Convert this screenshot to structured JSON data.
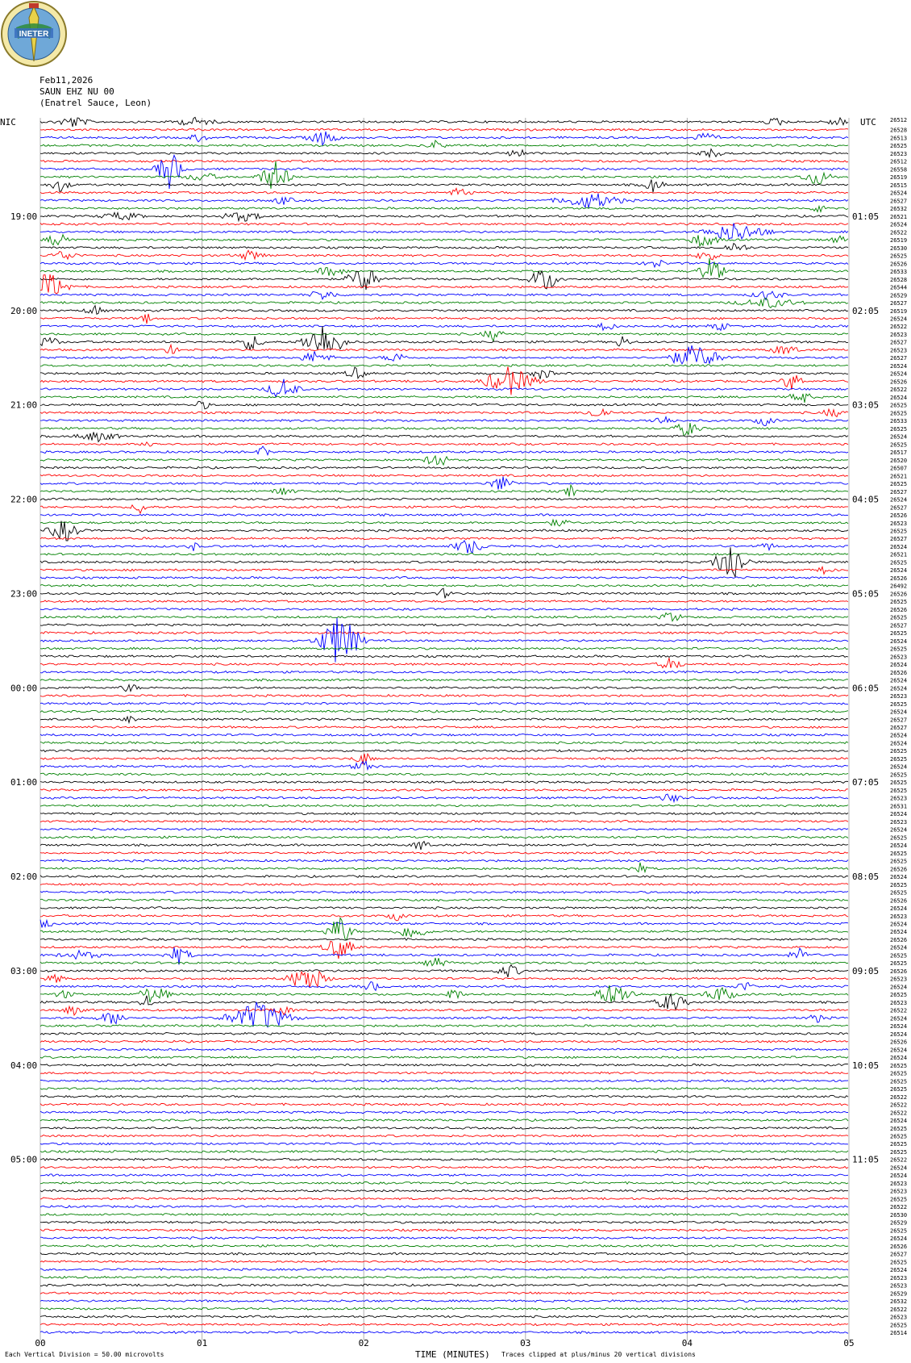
{
  "header": {
    "logo_text": "INETER",
    "date": "Feb11,2026",
    "station": "SAUN EHZ NU 00",
    "location": "(Enatrel Sauce, Leon)",
    "left_zone": "NIC",
    "right_zone": "UTC"
  },
  "footer": {
    "x_axis_label": "TIME (MINUTES)",
    "scale_note": "Each Vertical Division =   50.00 microvolts",
    "clip_note": "Traces clipped at plus/minus 20 vertical divisions"
  },
  "chart_data": {
    "type": "line",
    "title": "",
    "xlabel": "TIME (MINUTES)",
    "xlim": [
      0,
      5
    ],
    "x_ticks": [
      "00",
      "01",
      "02",
      "03",
      "04",
      "05"
    ],
    "trace_interval_minutes": 5,
    "trace_colors": [
      "#000000",
      "#ff0000",
      "#0000ff",
      "#008000"
    ],
    "left_hour_labels": [
      "19:00",
      "20:00",
      "21:00",
      "22:00",
      "23:00",
      "00:00",
      "01:00",
      "02:00",
      "03:00",
      "04:00",
      "05:00"
    ],
    "right_hour_labels": [
      "01:05",
      "02:05",
      "03:05",
      "04:05",
      "05:05",
      "06:05",
      "07:05",
      "08:05",
      "09:05",
      "10:05",
      "11:05"
    ],
    "first_hour_row": 12,
    "rows_per_hour": 12,
    "top_right_label": "26512",
    "row_counts": [
      26528,
      26513,
      26525,
      26523,
      26512,
      26558,
      26519,
      26515,
      26524,
      26527,
      26532,
      26521,
      26524,
      26522,
      26519,
      26530,
      26525,
      26526,
      26533,
      26528,
      26544,
      26529,
      26527,
      26519,
      26524,
      26522,
      26523,
      26527,
      26523,
      26527,
      26524,
      26524,
      26526,
      26522,
      26524,
      26525,
      26525,
      26533,
      26525,
      26524,
      26525,
      26517,
      26520,
      26507,
      26521,
      26525,
      26527,
      26524,
      26527,
      26526,
      26523,
      26525,
      26527,
      26524,
      26521,
      26525,
      26524,
      26526,
      26492,
      26526,
      26525,
      26526,
      26525,
      26527,
      26525,
      26524,
      26525,
      26523,
      26524,
      26526,
      26524,
      26524,
      26523,
      26525,
      26524,
      26527,
      26527,
      26524,
      26524,
      26525,
      26525,
      26524,
      26525,
      26525,
      26525,
      26523,
      26531,
      26524,
      26523,
      26524,
      26525,
      26524,
      26525,
      26525,
      26526,
      26524,
      26525,
      26525,
      26526,
      26524,
      26523,
      26524,
      26524,
      26526,
      26524,
      26525,
      26525,
      26526,
      26523,
      26524,
      26525,
      26523,
      26522,
      26524,
      26524,
      26524,
      26526,
      26524,
      26524,
      26525,
      26525,
      26525,
      26525,
      26522,
      26522,
      26522,
      26524,
      26525,
      26525,
      26525,
      26525,
      26522,
      26524,
      26524,
      26523,
      26523,
      26525,
      26522,
      26530,
      26529,
      26525,
      26524,
      26526,
      26527,
      26525,
      26524,
      26523,
      26523,
      26529,
      26532,
      26522,
      26523,
      26525,
      26514
    ],
    "events": [
      {
        "row": 0,
        "t": 0.2,
        "amp": 7,
        "dur": 0.15
      },
      {
        "row": 0,
        "t": 0.95,
        "amp": 5,
        "dur": 0.2
      },
      {
        "row": 0,
        "t": 4.55,
        "amp": 5,
        "dur": 0.1
      },
      {
        "row": 0,
        "t": 4.93,
        "amp": 6,
        "dur": 0.1
      },
      {
        "row": 2,
        "t": 1.75,
        "amp": 9,
        "dur": 0.15
      },
      {
        "row": 2,
        "t": 0.98,
        "amp": 5,
        "dur": 0.1
      },
      {
        "row": 2,
        "t": 4.1,
        "amp": 5,
        "dur": 0.15
      },
      {
        "row": 3,
        "t": 2.45,
        "amp": 7,
        "dur": 0.08
      },
      {
        "row": 4,
        "t": 2.95,
        "amp": 6,
        "dur": 0.1
      },
      {
        "row": 4,
        "t": 4.15,
        "amp": 5,
        "dur": 0.12
      },
      {
        "row": 6,
        "t": 0.8,
        "amp": 26,
        "dur": 0.12
      },
      {
        "row": 7,
        "t": 1.0,
        "amp": 6,
        "dur": 0.15
      },
      {
        "row": 7,
        "t": 1.45,
        "amp": 20,
        "dur": 0.15
      },
      {
        "row": 7,
        "t": 4.8,
        "amp": 10,
        "dur": 0.15
      },
      {
        "row": 8,
        "t": 0.12,
        "amp": 8,
        "dur": 0.1
      },
      {
        "row": 8,
        "t": 3.79,
        "amp": 9,
        "dur": 0.1
      },
      {
        "row": 9,
        "t": 2.6,
        "amp": 6,
        "dur": 0.12
      },
      {
        "row": 10,
        "t": 3.4,
        "amp": 10,
        "dur": 0.3
      },
      {
        "row": 10,
        "t": 1.5,
        "amp": 5,
        "dur": 0.1
      },
      {
        "row": 11,
        "t": 4.83,
        "amp": 8,
        "dur": 0.08
      },
      {
        "row": 12,
        "t": 0.5,
        "amp": 5,
        "dur": 0.2
      },
      {
        "row": 12,
        "t": 1.25,
        "amp": 6,
        "dur": 0.2
      },
      {
        "row": 14,
        "t": 4.3,
        "amp": 12,
        "dur": 0.3
      },
      {
        "row": 15,
        "t": 0.12,
        "amp": 10,
        "dur": 0.12
      },
      {
        "row": 15,
        "t": 4.1,
        "amp": 9,
        "dur": 0.15
      },
      {
        "row": 15,
        "t": 4.93,
        "amp": 5,
        "dur": 0.08
      },
      {
        "row": 16,
        "t": 4.3,
        "amp": 7,
        "dur": 0.12
      },
      {
        "row": 17,
        "t": 0.15,
        "amp": 7,
        "dur": 0.12
      },
      {
        "row": 17,
        "t": 1.3,
        "amp": 6,
        "dur": 0.15
      },
      {
        "row": 17,
        "t": 4.12,
        "amp": 8,
        "dur": 0.1
      },
      {
        "row": 18,
        "t": 3.8,
        "amp": 6,
        "dur": 0.1
      },
      {
        "row": 19,
        "t": 1.8,
        "amp": 6,
        "dur": 0.15
      },
      {
        "row": 19,
        "t": 4.15,
        "amp": 18,
        "dur": 0.12
      },
      {
        "row": 20,
        "t": 2.0,
        "amp": 18,
        "dur": 0.15
      },
      {
        "row": 20,
        "t": 3.12,
        "amp": 16,
        "dur": 0.15
      },
      {
        "row": 21,
        "t": 0.05,
        "amp": 18,
        "dur": 0.2
      },
      {
        "row": 22,
        "t": 1.75,
        "amp": 6,
        "dur": 0.15
      },
      {
        "row": 22,
        "t": 4.5,
        "amp": 6,
        "dur": 0.15
      },
      {
        "row": 23,
        "t": 4.5,
        "amp": 6,
        "dur": 0.3
      },
      {
        "row": 24,
        "t": 0.33,
        "amp": 8,
        "dur": 0.08
      },
      {
        "row": 25,
        "t": 0.65,
        "amp": 10,
        "dur": 0.05
      },
      {
        "row": 26,
        "t": 3.5,
        "amp": 7,
        "dur": 0.08
      },
      {
        "row": 26,
        "t": 4.2,
        "amp": 5,
        "dur": 0.1
      },
      {
        "row": 27,
        "t": 2.8,
        "amp": 8,
        "dur": 0.1
      },
      {
        "row": 28,
        "t": 0.05,
        "amp": 8,
        "dur": 0.1
      },
      {
        "row": 28,
        "t": 1.3,
        "amp": 10,
        "dur": 0.12
      },
      {
        "row": 28,
        "t": 1.75,
        "amp": 24,
        "dur": 0.2
      },
      {
        "row": 28,
        "t": 3.6,
        "amp": 8,
        "dur": 0.08
      },
      {
        "row": 29,
        "t": 0.8,
        "amp": 6,
        "dur": 0.08
      },
      {
        "row": 29,
        "t": 4.6,
        "amp": 6,
        "dur": 0.15
      },
      {
        "row": 30,
        "t": 1.7,
        "amp": 8,
        "dur": 0.15
      },
      {
        "row": 30,
        "t": 2.2,
        "amp": 6,
        "dur": 0.12
      },
      {
        "row": 30,
        "t": 4.05,
        "amp": 16,
        "dur": 0.25
      },
      {
        "row": 32,
        "t": 1.95,
        "amp": 8,
        "dur": 0.1
      },
      {
        "row": 32,
        "t": 3.1,
        "amp": 8,
        "dur": 0.1
      },
      {
        "row": 33,
        "t": 2.9,
        "amp": 18,
        "dur": 0.25
      },
      {
        "row": 33,
        "t": 4.65,
        "amp": 12,
        "dur": 0.1
      },
      {
        "row": 34,
        "t": 1.5,
        "amp": 14,
        "dur": 0.15
      },
      {
        "row": 35,
        "t": 4.7,
        "amp": 10,
        "dur": 0.1
      },
      {
        "row": 36,
        "t": 1.0,
        "amp": 6,
        "dur": 0.08
      },
      {
        "row": 37,
        "t": 3.45,
        "amp": 8,
        "dur": 0.12
      },
      {
        "row": 37,
        "t": 4.9,
        "amp": 6,
        "dur": 0.1
      },
      {
        "row": 38,
        "t": 3.85,
        "amp": 6,
        "dur": 0.12
      },
      {
        "row": 38,
        "t": 4.48,
        "amp": 6,
        "dur": 0.1
      },
      {
        "row": 39,
        "t": 4.0,
        "amp": 10,
        "dur": 0.12
      },
      {
        "row": 40,
        "t": 0.35,
        "amp": 6,
        "dur": 0.2
      },
      {
        "row": 41,
        "t": 0.68,
        "amp": 5,
        "dur": 0.08
      },
      {
        "row": 42,
        "t": 1.38,
        "amp": 8,
        "dur": 0.06
      },
      {
        "row": 43,
        "t": 2.45,
        "amp": 12,
        "dur": 0.1
      },
      {
        "row": 46,
        "t": 2.85,
        "amp": 10,
        "dur": 0.12
      },
      {
        "row": 47,
        "t": 1.5,
        "amp": 6,
        "dur": 0.1
      },
      {
        "row": 47,
        "t": 3.28,
        "amp": 8,
        "dur": 0.06
      },
      {
        "row": 49,
        "t": 0.62,
        "amp": 8,
        "dur": 0.08
      },
      {
        "row": 51,
        "t": 3.2,
        "amp": 5,
        "dur": 0.1
      },
      {
        "row": 52,
        "t": 0.15,
        "amp": 14,
        "dur": 0.15
      },
      {
        "row": 54,
        "t": 2.65,
        "amp": 10,
        "dur": 0.15
      },
      {
        "row": 54,
        "t": 0.95,
        "amp": 5,
        "dur": 0.06
      },
      {
        "row": 54,
        "t": 4.5,
        "amp": 5,
        "dur": 0.08
      },
      {
        "row": 56,
        "t": 4.27,
        "amp": 30,
        "dur": 0.15
      },
      {
        "row": 57,
        "t": 4.85,
        "amp": 5,
        "dur": 0.08
      },
      {
        "row": 60,
        "t": 2.5,
        "amp": 7,
        "dur": 0.06
      },
      {
        "row": 63,
        "t": 3.9,
        "amp": 7,
        "dur": 0.1
      },
      {
        "row": 66,
        "t": 1.85,
        "amp": 34,
        "dur": 0.2
      },
      {
        "row": 69,
        "t": 3.9,
        "amp": 8,
        "dur": 0.12
      },
      {
        "row": 72,
        "t": 0.55,
        "amp": 6,
        "dur": 0.08
      },
      {
        "row": 76,
        "t": 0.55,
        "amp": 5,
        "dur": 0.06
      },
      {
        "row": 81,
        "t": 2.0,
        "amp": 8,
        "dur": 0.1
      },
      {
        "row": 82,
        "t": 2.0,
        "amp": 6,
        "dur": 0.12
      },
      {
        "row": 86,
        "t": 3.9,
        "amp": 6,
        "dur": 0.1
      },
      {
        "row": 92,
        "t": 2.35,
        "amp": 8,
        "dur": 0.08
      },
      {
        "row": 95,
        "t": 3.7,
        "amp": 8,
        "dur": 0.08
      },
      {
        "row": 101,
        "t": 2.2,
        "amp": 6,
        "dur": 0.08
      },
      {
        "row": 102,
        "t": 0.02,
        "amp": 6,
        "dur": 0.1
      },
      {
        "row": 103,
        "t": 2.3,
        "amp": 10,
        "dur": 0.15
      },
      {
        "row": 103,
        "t": 1.85,
        "amp": 20,
        "dur": 0.12
      },
      {
        "row": 105,
        "t": 1.85,
        "amp": 14,
        "dur": 0.15
      },
      {
        "row": 106,
        "t": 0.85,
        "amp": 12,
        "dur": 0.12
      },
      {
        "row": 106,
        "t": 4.7,
        "amp": 8,
        "dur": 0.12
      },
      {
        "row": 106,
        "t": 0.25,
        "amp": 5,
        "dur": 0.2
      },
      {
        "row": 107,
        "t": 2.45,
        "amp": 6,
        "dur": 0.12
      },
      {
        "row": 108,
        "t": 2.9,
        "amp": 8,
        "dur": 0.12
      },
      {
        "row": 109,
        "t": 1.65,
        "amp": 18,
        "dur": 0.18
      },
      {
        "row": 109,
        "t": 0.1,
        "amp": 5,
        "dur": 0.1
      },
      {
        "row": 110,
        "t": 2.05,
        "amp": 6,
        "dur": 0.1
      },
      {
        "row": 110,
        "t": 4.35,
        "amp": 6,
        "dur": 0.1
      },
      {
        "row": 111,
        "t": 0.7,
        "amp": 12,
        "dur": 0.15
      },
      {
        "row": 111,
        "t": 3.55,
        "amp": 14,
        "dur": 0.2
      },
      {
        "row": 111,
        "t": 4.2,
        "amp": 10,
        "dur": 0.15
      },
      {
        "row": 111,
        "t": 0.15,
        "amp": 5,
        "dur": 0.1
      },
      {
        "row": 111,
        "t": 2.55,
        "amp": 8,
        "dur": 0.1
      },
      {
        "row": 112,
        "t": 0.65,
        "amp": 10,
        "dur": 0.06
      },
      {
        "row": 112,
        "t": 3.9,
        "amp": 12,
        "dur": 0.15
      },
      {
        "row": 113,
        "t": 0.2,
        "amp": 6,
        "dur": 0.1
      },
      {
        "row": 113,
        "t": 1.5,
        "amp": 5,
        "dur": 0.12
      },
      {
        "row": 114,
        "t": 0.45,
        "amp": 8,
        "dur": 0.15
      },
      {
        "row": 114,
        "t": 1.35,
        "amp": 20,
        "dur": 0.3
      },
      {
        "row": 114,
        "t": 4.8,
        "amp": 5,
        "dur": 0.1
      }
    ]
  }
}
